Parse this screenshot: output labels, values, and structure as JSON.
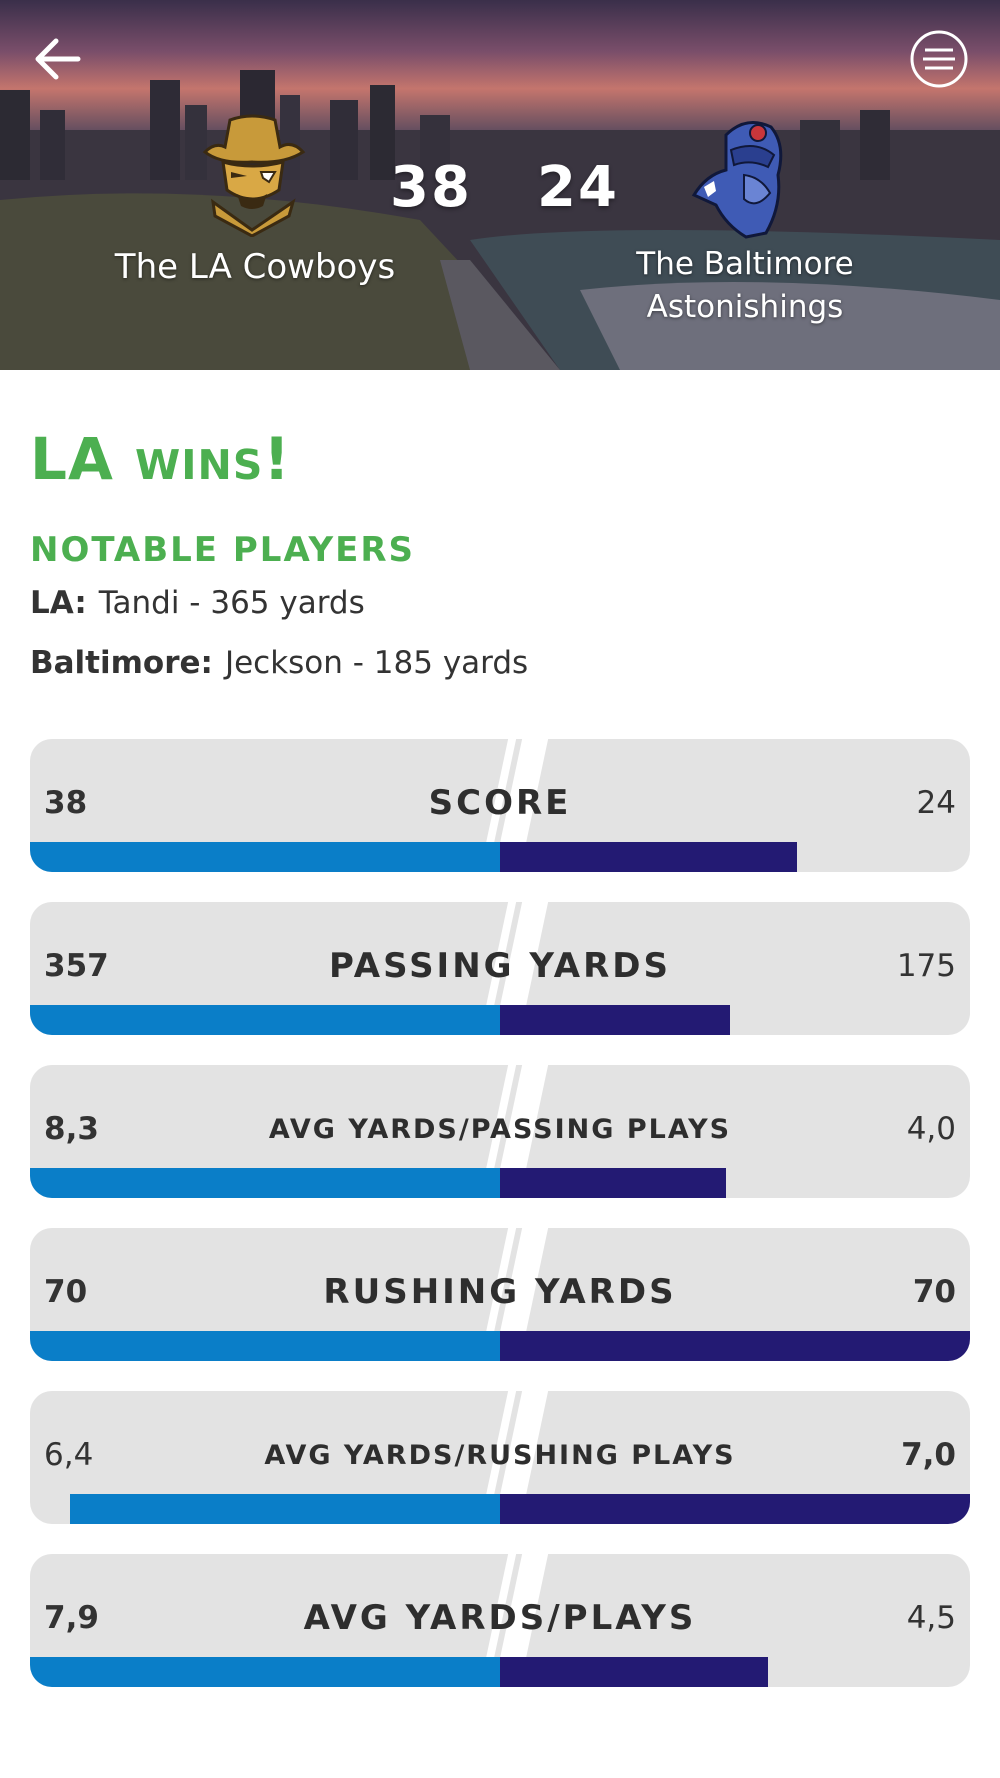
{
  "header": {
    "home_team": "The LA Cowboys",
    "away_team_line1": "The Baltimore",
    "away_team_line2": "Astonishings",
    "home_score": "38",
    "away_score": "24"
  },
  "result": {
    "headline": "LA wins!"
  },
  "notable": {
    "title": "NOTABLE PLAYERS",
    "la_label": "LA:",
    "la_text": "Tandi - 365 yards",
    "bal_label": "Baltimore:",
    "bal_text": "Jeckson - 185 yards"
  },
  "colors": {
    "accent_green": "#4caf50",
    "home_bar": "#0a7ec8",
    "away_bar": "#231a73",
    "card_bg": "#e3e3e3"
  },
  "stats": [
    {
      "label": "SCORE",
      "left": "38",
      "right": "24",
      "left_frac": 1.0,
      "right_frac": 0.632
    },
    {
      "label": "PASSING YARDS",
      "left": "357",
      "right": "175",
      "left_frac": 1.0,
      "right_frac": 0.49
    },
    {
      "label": "AVG YARDS/PASSING PLAYS",
      "left": "8,3",
      "right": "4,0",
      "left_frac": 1.0,
      "right_frac": 0.48
    },
    {
      "label": "RUSHING YARDS",
      "left": "70",
      "right": "70",
      "left_frac": 1.0,
      "right_frac": 1.0
    },
    {
      "label": "AVG YARDS/RUSHING PLAYS",
      "left": "6,4",
      "right": "7,0",
      "left_frac": 0.914,
      "right_frac": 1.0
    },
    {
      "label": "AVG YARDS/PLAYS",
      "left": "7,9",
      "right": "4,5",
      "left_frac": 1.0,
      "right_frac": 0.57
    }
  ]
}
